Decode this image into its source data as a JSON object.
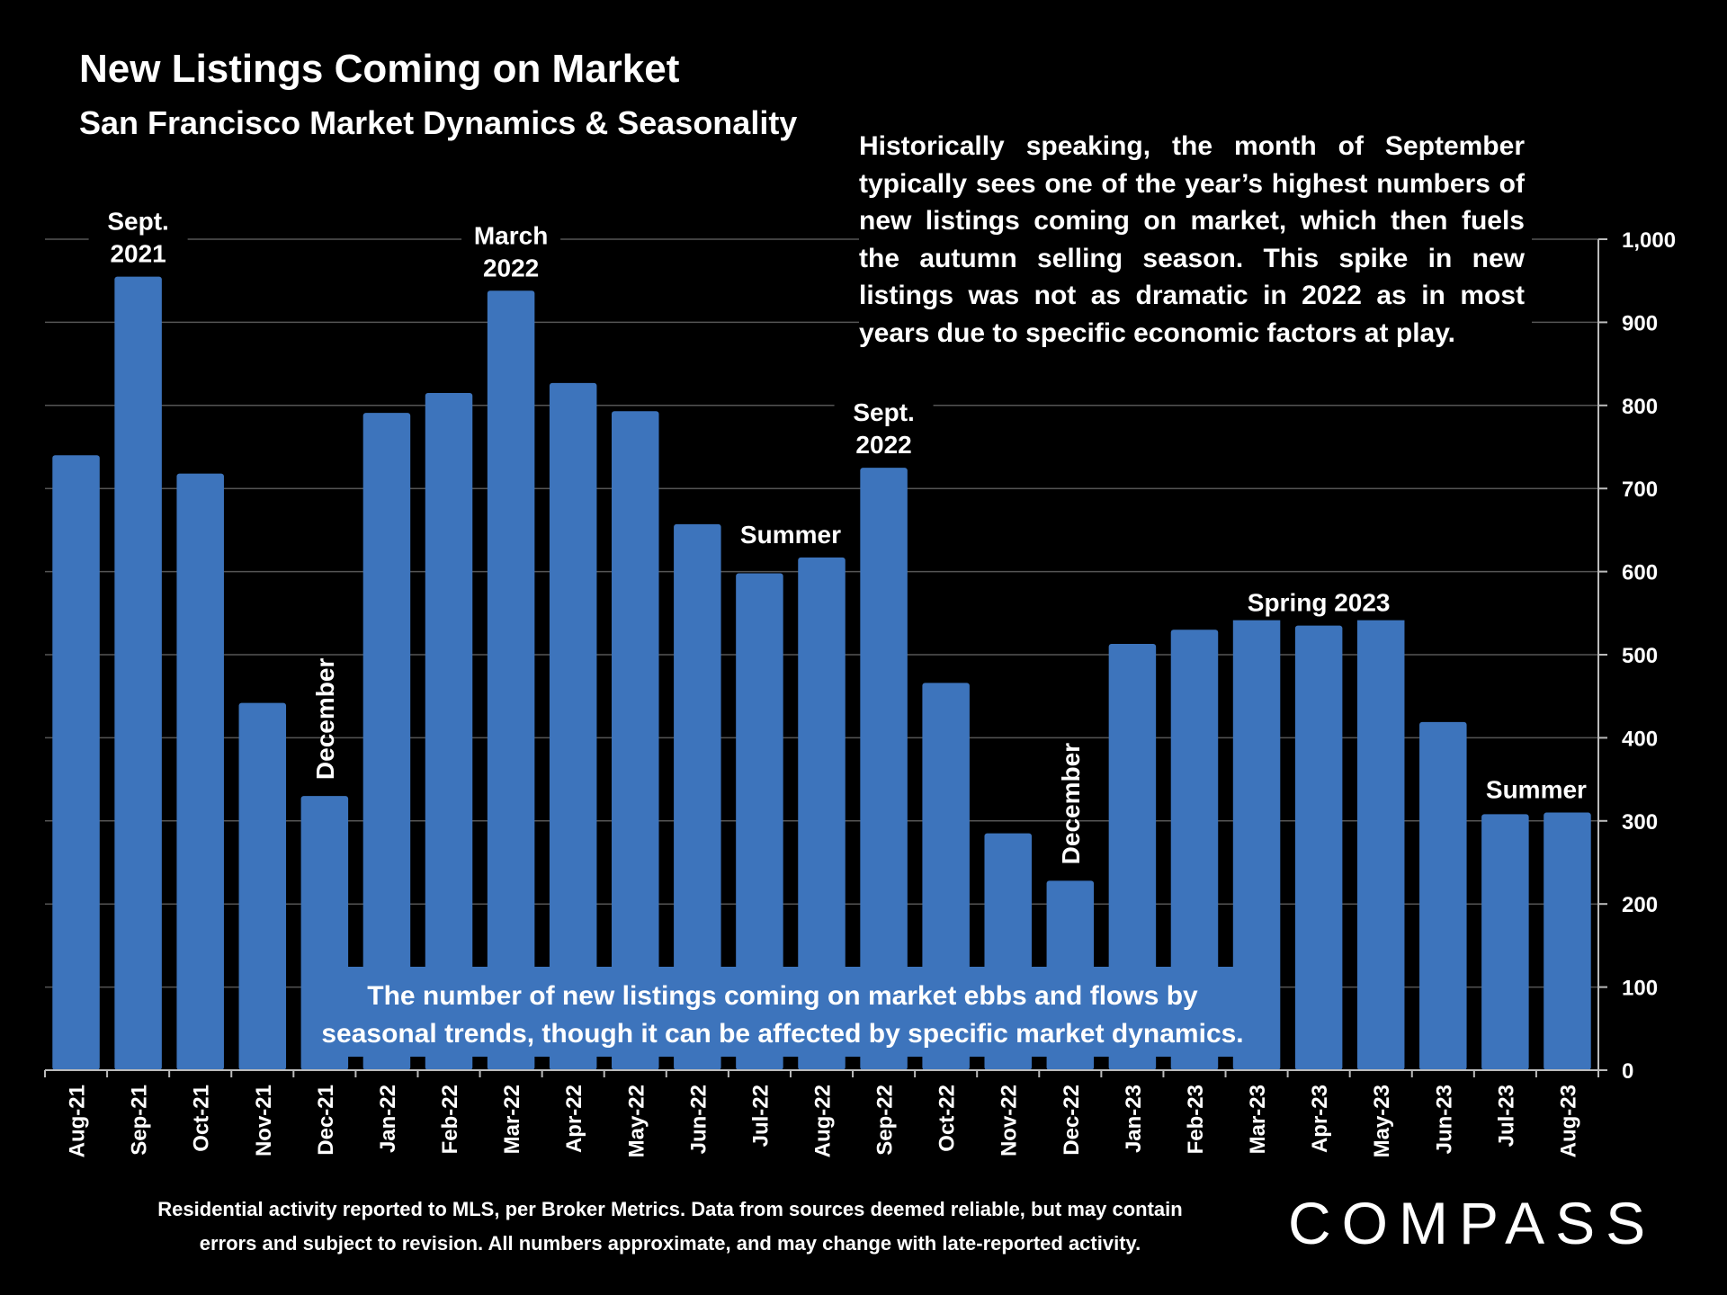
{
  "header": {
    "title": "New Listings Coming on Market",
    "subtitle": "San Francisco Market Dynamics & Seasonality"
  },
  "note": "Historically speaking, the month of September typically sees one of the year’s highest numbers of new listings coming on market, which then fuels the autumn selling season. This spike in new listings was not as dramatic in 2022 as in most years due to specific economic factors at play.",
  "callout": {
    "line1": "The number of new listings coming on market ebbs and flows by",
    "line2": "seasonal trends, though it can be affected by specific market dynamics."
  },
  "footnote": {
    "line1": "Residential activity reported to MLS, per Broker Metrics. Data from sources deemed reliable, but may contain",
    "line2": "errors and subject to revision. All numbers approximate, and may change with late-reported activity."
  },
  "logo": "COMPASS",
  "colors": {
    "bar": "#3d74bc",
    "background": "#000000",
    "grid": "#555555",
    "text": "#ffffff"
  },
  "chart_data": {
    "type": "bar",
    "title": "New Listings Coming on Market",
    "categories": [
      "Aug-21",
      "Sep-21",
      "Oct-21",
      "Nov-21",
      "Dec-21",
      "Jan-22",
      "Feb-22",
      "Mar-22",
      "Apr-22",
      "May-22",
      "Jun-22",
      "Jul-22",
      "Aug-22",
      "Sep-22",
      "Oct-22",
      "Nov-22",
      "Dec-22",
      "Jan-23",
      "Feb-23",
      "Mar-23",
      "Apr-23",
      "May-23",
      "Jun-23",
      "Jul-23",
      "Aug-23"
    ],
    "values": [
      740,
      955,
      718,
      442,
      330,
      791,
      815,
      938,
      827,
      793,
      657,
      598,
      617,
      725,
      466,
      285,
      228,
      513,
      530,
      562,
      535,
      566,
      419,
      308,
      310
    ],
    "ylim": [
      0,
      1000
    ],
    "yticks": [
      0,
      100,
      200,
      300,
      400,
      500,
      600,
      700,
      800,
      900,
      1000
    ],
    "ytick_labels": [
      "0",
      "100",
      "200",
      "300",
      "400",
      "500",
      "600",
      "700",
      "800",
      "900",
      "1,000"
    ],
    "y_axis_side": "right",
    "grid": true,
    "annotations": [
      {
        "lines": [
          "Sept.",
          "2021"
        ],
        "index": 1,
        "rotate": false
      },
      {
        "lines": [
          "December"
        ],
        "index": 4,
        "rotate": true
      },
      {
        "lines": [
          "March",
          "2022"
        ],
        "index": 7,
        "rotate": false
      },
      {
        "lines": [
          "Summer"
        ],
        "index": 11.5,
        "rotate": false
      },
      {
        "lines": [
          "Sept.",
          "2022"
        ],
        "index": 13,
        "rotate": false
      },
      {
        "lines": [
          "December"
        ],
        "index": 16,
        "rotate": true
      },
      {
        "lines": [
          "Spring 2023"
        ],
        "index": 20,
        "rotate": false
      },
      {
        "lines": [
          "Summer"
        ],
        "index": 23.5,
        "rotate": false
      }
    ]
  }
}
